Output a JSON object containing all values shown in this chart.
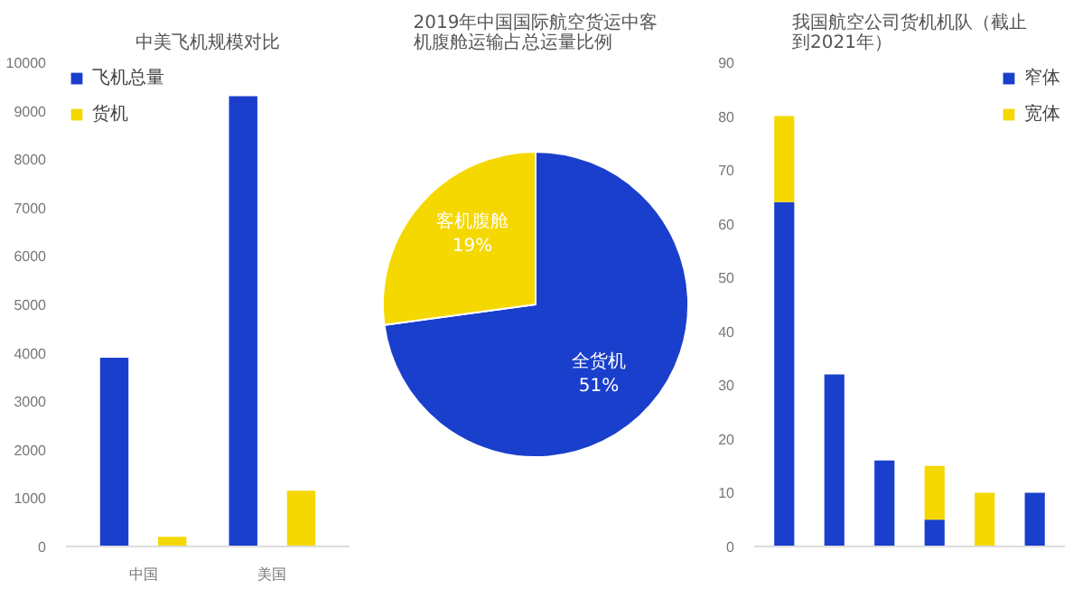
{
  "chart_data": [
    {
      "type": "bar",
      "title": "中美飞机规模对比",
      "categories": [
        "中国",
        "美国"
      ],
      "series": [
        {
          "name": "飞机总量",
          "color": "#1a3fcc",
          "values": [
            3900,
            9300
          ]
        },
        {
          "name": "货机",
          "color": "#f5d800",
          "values": [
            200,
            1150
          ]
        }
      ],
      "ylim": [
        0,
        10000
      ],
      "yticks": [
        0,
        1000,
        2000,
        3000,
        4000,
        5000,
        6000,
        7000,
        8000,
        9000,
        10000
      ],
      "legend": "top left"
    },
    {
      "type": "pie",
      "title": "2019年中国国际航空货运中客机腹舱运输占总运量比例",
      "categories": [
        "全货机",
        "客机腹舱"
      ],
      "values": [
        51,
        19
      ],
      "colors": [
        "#1a3fcc",
        "#f5d800"
      ],
      "value_labels": [
        "51%",
        "19%"
      ]
    },
    {
      "type": "bar",
      "title": "我国航空公司货机机队（截止到2021年）",
      "categories": [
        null,
        null,
        null,
        null,
        null,
        null
      ],
      "stacked": true,
      "series": [
        {
          "name": "窄体",
          "color": "#1a3fcc",
          "values": [
            64,
            32,
            16,
            5,
            0,
            10
          ]
        },
        {
          "name": "宽体",
          "color": "#f5d800",
          "values": [
            16,
            0,
            0,
            10,
            10,
            0
          ]
        }
      ],
      "ylim": [
        0,
        90
      ],
      "yticks": [
        0,
        10,
        20,
        30,
        40,
        50,
        60,
        70,
        80,
        90
      ],
      "legend": "top right"
    }
  ]
}
